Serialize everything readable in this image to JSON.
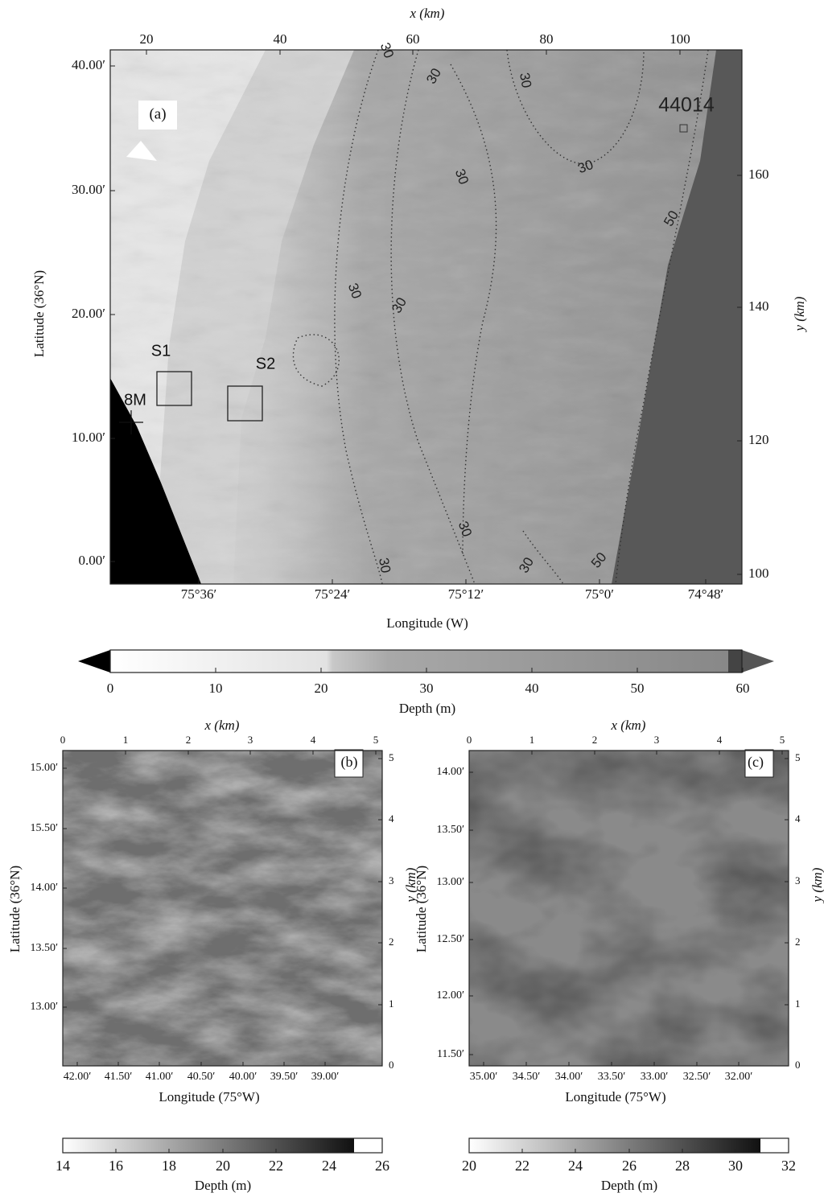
{
  "panel_a": {
    "label": "(a)",
    "x_axis_title": "x (km)",
    "x_ticks": [
      "20",
      "40",
      "60",
      "80",
      "100"
    ],
    "lat_axis_title": "Latitude (36°N)",
    "lat_ticks": [
      "40.00′",
      "30.00′",
      "20.00′",
      "10.00′",
      "0.00′"
    ],
    "lon_axis_title": "Longitude (W)",
    "lon_ticks": [
      "75°36′",
      "75°24′",
      "75°12′",
      "75°0′",
      "74°48′"
    ],
    "y_axis_title": "y (km)",
    "y_ticks": [
      "160",
      "140",
      "120",
      "100"
    ],
    "annotations": {
      "buoy": "44014",
      "site_1": "S1",
      "site_2": "S2",
      "station": "8M"
    },
    "contour_labels": [
      "30",
      "30",
      "30",
      "30",
      "30",
      "30",
      "30",
      "30",
      "30",
      "30",
      "50",
      "50"
    ]
  },
  "colorbar_a": {
    "ticks": [
      "0",
      "10",
      "20",
      "30",
      "40",
      "50",
      "60"
    ],
    "title": "Depth (m)"
  },
  "panel_b": {
    "label": "(b)",
    "x_axis_title": "x (km)",
    "x_ticks": [
      "0",
      "1",
      "2",
      "3",
      "4",
      "5"
    ],
    "lat_axis_title": "Latitude (36°N)",
    "lat_ticks": [
      "15.00′",
      "15.50′",
      "14.00′",
      "13.50′",
      "13.00′"
    ],
    "lon_axis_title": "Longitude (75°W)",
    "lon_ticks": [
      "42.00′",
      "41.50′",
      "41.00′",
      "40.50′",
      "40.00′",
      "39.50′",
      "39.00′"
    ],
    "y_axis_title": "y (km)",
    "y_ticks": [
      "0",
      "1",
      "2",
      "3",
      "4",
      "5"
    ]
  },
  "colorbar_b": {
    "ticks": [
      "14",
      "16",
      "18",
      "20",
      "22",
      "24",
      "26"
    ],
    "title": "Depth (m)"
  },
  "panel_c": {
    "label": "(c)",
    "x_axis_title": "x (km)",
    "x_ticks": [
      "0",
      "1",
      "2",
      "3",
      "4",
      "5"
    ],
    "lat_axis_title": "Latitude (36°N)",
    "lat_ticks": [
      "14.00′",
      "13.50′",
      "13.00′",
      "12.50′",
      "12.00′",
      "11.50′"
    ],
    "lon_axis_title": "Longitude (75°W)",
    "lon_ticks": [
      "35.00′",
      "34.50′",
      "34.00′",
      "33.50′",
      "33.00′",
      "32.50′",
      "32.00′"
    ],
    "y_axis_title": "y (km)",
    "y_ticks": [
      "0",
      "1",
      "2",
      "3",
      "4",
      "5"
    ]
  },
  "colorbar_c": {
    "ticks": [
      "20",
      "22",
      "24",
      "26",
      "28",
      "30",
      "32"
    ],
    "title": "Depth (m)"
  }
}
